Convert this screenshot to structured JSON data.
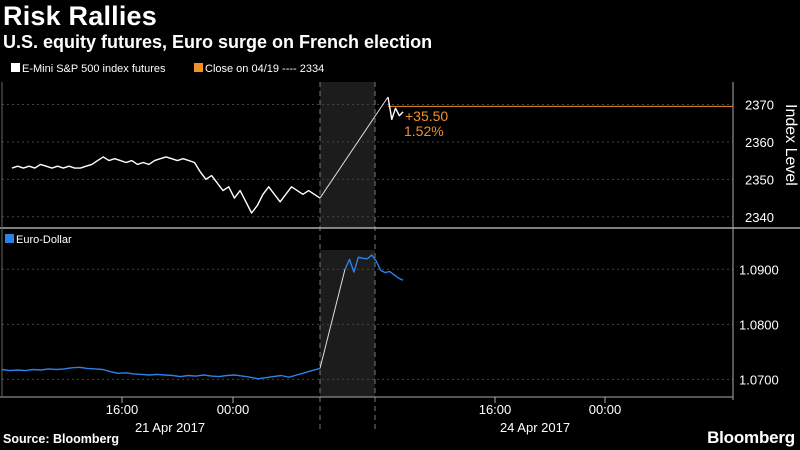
{
  "title": "Risk Rallies",
  "subtitle": "U.S. equity futures, Euro surge on French election",
  "source": "Source: Bloomberg",
  "brand": "Bloomberg",
  "colors": {
    "background": "#000000",
    "sp": "#ffffff",
    "eur": "#2a82e6",
    "close": "#f0902a",
    "shade": "#1c1c1c"
  },
  "chart_data": [
    {
      "type": "line",
      "legend": [
        {
          "label": "E-Mini S&P 500 index futures",
          "color": "#ffffff"
        },
        {
          "label": "Close on 04/19 ---- 2334",
          "color": "#f0902a"
        }
      ],
      "ylabel": "Index Level",
      "yticks": [
        2340,
        2350,
        2360,
        2370
      ],
      "ylim": [
        2337,
        2376
      ],
      "hline": 2369.5,
      "annotation": {
        "change": "+35.50",
        "pct": "1.52%"
      },
      "series": [
        {
          "values": [
            2353,
            2353.5,
            2353,
            2353.5,
            2353,
            2354,
            2353.5,
            2353,
            2353.5,
            2353,
            2353.5,
            2353,
            2353,
            2353.5,
            2354,
            2355,
            2356,
            2355,
            2355.5,
            2355,
            2354.5,
            2355,
            2354,
            2354.5,
            2354,
            2355,
            2355.5,
            2356,
            2355.5,
            2355,
            2355.5,
            2355,
            2354.5,
            2352,
            2350,
            2351,
            2349,
            2347,
            2348,
            2345,
            2347,
            2344,
            2341,
            2343,
            2346,
            2348,
            2346,
            2344,
            2346,
            2348,
            2347,
            2346,
            2347,
            2346,
            2345
          ]
        },
        {
          "values": [
            2372,
            2366,
            2369,
            2367,
            2368
          ]
        }
      ]
    },
    {
      "type": "line",
      "legend": [
        {
          "label": "Euro-Dollar",
          "color": "#2a82e6"
        }
      ],
      "yticks": [
        "1.0700",
        "1.0800",
        "1.0900"
      ],
      "ylim": [
        1.0668,
        1.0935
      ],
      "series": [
        {
          "values": [
            1.0718,
            1.0716,
            1.0717,
            1.0716,
            1.0718,
            1.0717,
            1.0719,
            1.0718,
            1.0719,
            1.0721,
            1.0722,
            1.072,
            1.0719,
            1.0718,
            1.0714,
            1.0711,
            1.0712,
            1.071,
            1.0709,
            1.0708,
            1.0709,
            1.0708,
            1.0707,
            1.0705,
            1.0707,
            1.0706,
            1.0708,
            1.0706,
            1.0705,
            1.0707,
            1.0708,
            1.0706,
            1.0704,
            1.0701,
            1.0703,
            1.0705,
            1.0707,
            1.0704,
            1.0708,
            1.0712,
            1.0716,
            1.072
          ]
        },
        {
          "values": [
            1.09,
            1.0918,
            1.0895,
            1.0922,
            1.092,
            1.0919,
            1.0926,
            1.0915,
            1.0898,
            1.0894,
            1.0896,
            1.089,
            1.0884,
            1.088
          ]
        }
      ]
    }
  ],
  "xaxis": {
    "time_ticks": [
      "16:00",
      "00:00",
      "16:00",
      "00:00"
    ],
    "date_labels": [
      "21 Apr 2017",
      "24 Apr 2017"
    ]
  }
}
